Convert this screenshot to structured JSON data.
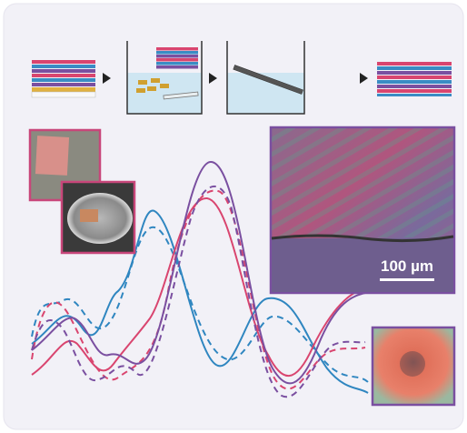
{
  "scale_bar": {
    "label": "100 µm"
  }
}
